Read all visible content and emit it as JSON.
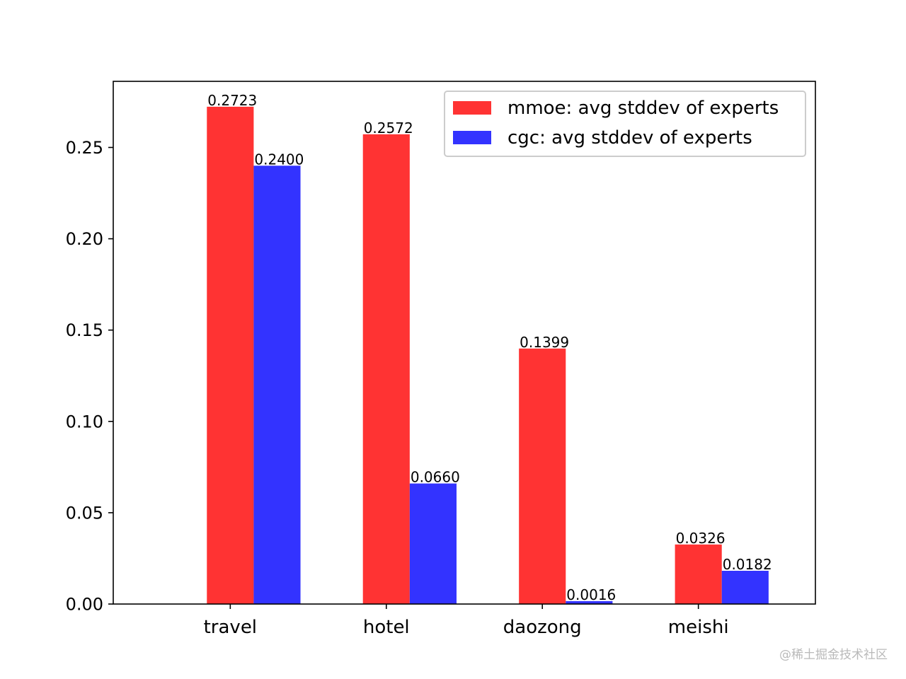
{
  "chart_data": {
    "type": "bar",
    "categories": [
      "travel",
      "hotel",
      "daozong",
      "meishi"
    ],
    "series": [
      {
        "name": "mmoe: avg stddev of experts",
        "color": "#ff3333",
        "values": [
          0.2723,
          0.2572,
          0.1399,
          0.0326
        ],
        "labels": [
          "0.2723",
          "0.2572",
          "0.1399",
          "0.0326"
        ]
      },
      {
        "name": "cgc: avg stddev of experts",
        "color": "#3333ff",
        "values": [
          0.24,
          0.066,
          0.0016,
          0.0182
        ],
        "labels": [
          "0.2400",
          "0.0660",
          "0.0016",
          "0.0182"
        ]
      }
    ],
    "ylim": [
      0,
      0.2862
    ],
    "yticks": [
      0.0,
      0.05,
      0.1,
      0.15,
      0.2,
      0.25
    ],
    "ytick_labels": [
      "0.00",
      "0.05",
      "0.10",
      "0.15",
      "0.20",
      "0.25"
    ],
    "title": "",
    "xlabel": "",
    "ylabel": "",
    "legend_position": "top-right",
    "grid": false
  },
  "watermark": "@稀土掘金技术社区"
}
